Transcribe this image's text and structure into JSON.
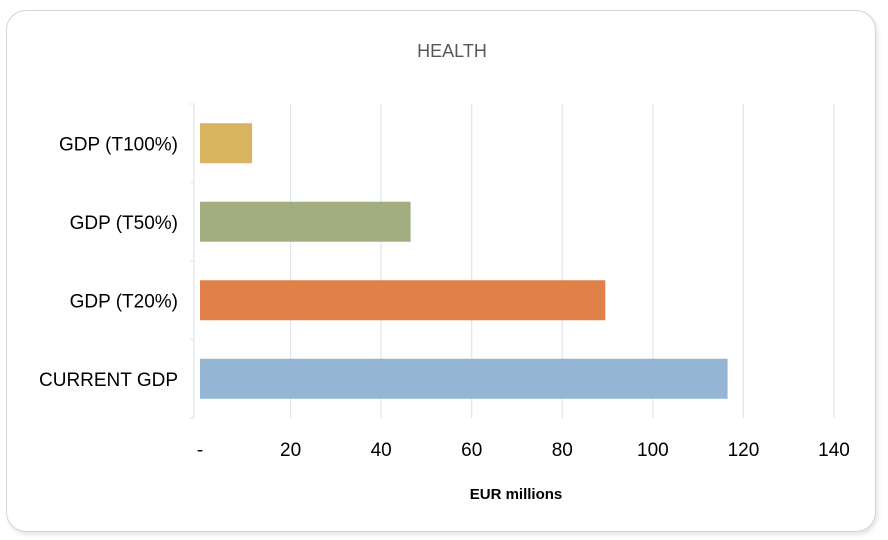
{
  "chart_data": {
    "type": "bar",
    "orientation": "horizontal",
    "title": "HEALTH",
    "xlabel": "EUR millions",
    "ylabel": "",
    "xlim": [
      0,
      140
    ],
    "x_ticks": [
      0,
      20,
      40,
      60,
      80,
      100,
      120,
      140
    ],
    "x_tick_labels": [
      "-",
      "20",
      "40",
      "60",
      "80",
      "100",
      "120",
      "140"
    ],
    "grid": "vertical",
    "legend": "none",
    "categories": [
      "GDP (T100%)",
      "GDP (T50%)",
      "GDP (T20%)",
      "CURRENT GDP"
    ],
    "values": [
      11.5,
      46.5,
      89.5,
      116.5
    ],
    "colors": [
      "#d9b45f",
      "#a3ae80",
      "#e0814a",
      "#94b5d3"
    ]
  }
}
